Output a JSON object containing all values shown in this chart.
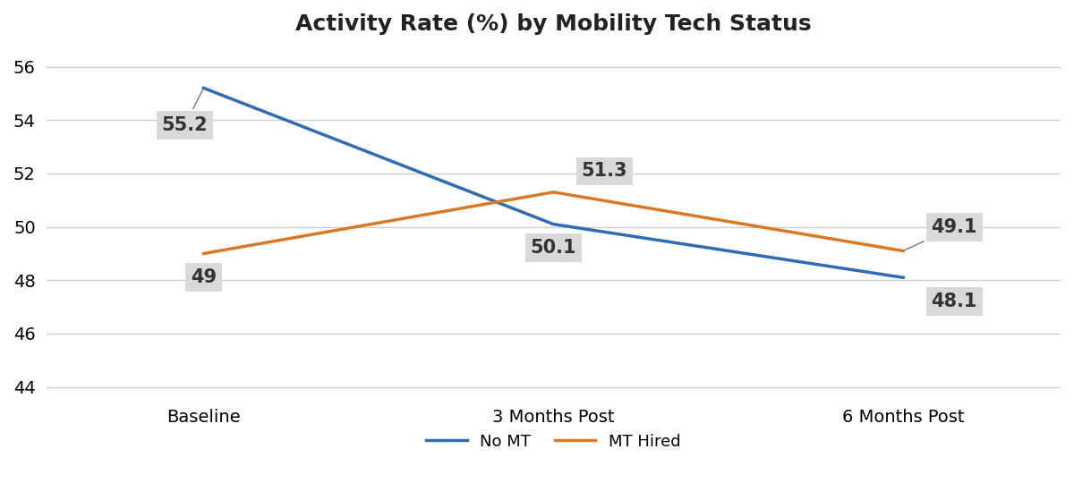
{
  "title": "Activity Rate (%) by Mobility Tech Status",
  "x_labels": [
    "Baseline",
    "3 Months Post",
    "6 Months Post"
  ],
  "series": [
    {
      "name": "No MT",
      "values": [
        55.2,
        50.1,
        48.1
      ],
      "color": "#2e6db4",
      "linewidth": 2.5
    },
    {
      "name": "MT Hired",
      "values": [
        49.0,
        51.3,
        49.1
      ],
      "color": "#d97825",
      "linewidth": 2.5
    }
  ],
  "ylim": [
    43.5,
    56.8
  ],
  "yticks": [
    44,
    46,
    48,
    50,
    52,
    54,
    56
  ],
  "annotation_bg_color": "#d9d9d9",
  "annotation_fontsize": 15,
  "title_fontsize": 18,
  "tick_fontsize": 14,
  "legend_fontsize": 13,
  "background_color": "#ffffff",
  "grid_color": "#cccccc",
  "annotations": [
    {
      "label": "55.2",
      "s_idx": 0,
      "p_idx": 0,
      "xoff": -0.12,
      "yoff": -1.05,
      "ha": "left",
      "va": "top",
      "arrow": true
    },
    {
      "label": "49",
      "s_idx": 1,
      "p_idx": 0,
      "xoff": 0.0,
      "yoff": -0.55,
      "ha": "center",
      "va": "top",
      "arrow": false
    },
    {
      "label": "51.3",
      "s_idx": 1,
      "p_idx": 1,
      "xoff": 0.08,
      "yoff": 0.45,
      "ha": "left",
      "va": "bottom",
      "arrow": false
    },
    {
      "label": "50.1",
      "s_idx": 0,
      "p_idx": 1,
      "xoff": 0.0,
      "yoff": -0.55,
      "ha": "center",
      "va": "top",
      "arrow": false
    },
    {
      "label": "49.1",
      "s_idx": 1,
      "p_idx": 2,
      "xoff": 0.08,
      "yoff": 0.55,
      "ha": "left",
      "va": "bottom",
      "arrow": true
    },
    {
      "label": "48.1",
      "s_idx": 0,
      "p_idx": 2,
      "xoff": 0.08,
      "yoff": -0.55,
      "ha": "left",
      "va": "top",
      "arrow": false
    }
  ]
}
